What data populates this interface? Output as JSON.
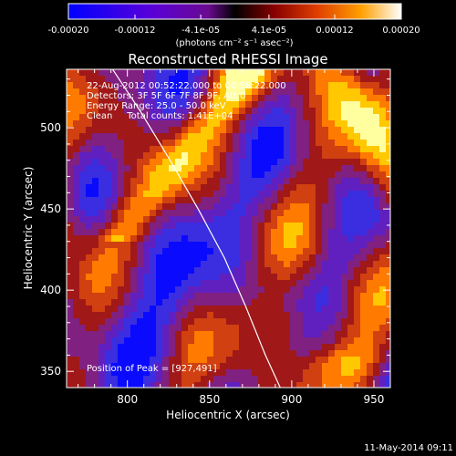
{
  "colorbar": {
    "tick_labels": [
      "-0.00020",
      "-0.00012",
      "-4.1e-05",
      "4.1e-05",
      "0.00012",
      "0.00020"
    ],
    "tick_values": [
      -0.0002,
      -0.00012,
      -4.1e-05,
      4.1e-05,
      0.00012,
      0.0002
    ],
    "range": [
      -0.0002,
      0.0002
    ],
    "units": "(photons cm⁻² s⁻¹ asec⁻²)"
  },
  "chart_data": {
    "type": "heatmap",
    "title": "Reconstructed RHESSI Image",
    "xlabel": "Heliocentric X (arcsec)",
    "ylabel": "Heliocentric Y (arcsec)",
    "xlim": [
      763,
      960
    ],
    "ylim": [
      340,
      536
    ],
    "x_ticks": [
      800,
      850,
      900,
      950
    ],
    "y_ticks": [
      350,
      400,
      450,
      500
    ],
    "x_tick_labels": [
      "800",
      "850",
      "900",
      "950"
    ],
    "y_tick_labels": [
      "350",
      "400",
      "450",
      "500"
    ],
    "info_lines": [
      "22-Aug-2012 00:52:22.000 to 00:58:22.000",
      "Detectors: 3F 5F 6F 7F 8F 9F, Att 0",
      "Energy Range: 25.0 - 50.0 keV",
      "Clean     Total counts: 1.41E+04"
    ],
    "peak_label": "Position of Peak = [927,491]",
    "limb_curve": [
      [
        791,
        536
      ],
      [
        808,
        510
      ],
      [
        826,
        480
      ],
      [
        843,
        450
      ],
      [
        859,
        420
      ],
      [
        872,
        390
      ],
      [
        884,
        360
      ],
      [
        893,
        340
      ]
    ],
    "colormap": [
      "#0a0aff",
      "#3a2ee0",
      "#6020c0",
      "#802080",
      "#a01818",
      "#d04010",
      "#ff7a00",
      "#ffc800",
      "#ffffa0"
    ]
  },
  "footer": {
    "date": "11-May-2014 09:11"
  }
}
